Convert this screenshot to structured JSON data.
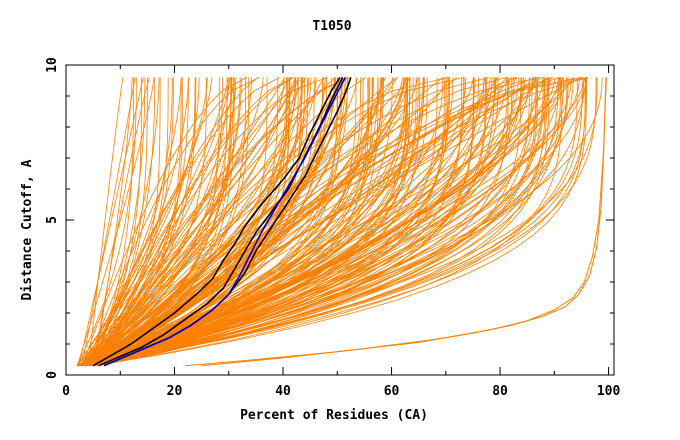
{
  "chart_data": {
    "type": "line",
    "title": "T1050",
    "xlabel": "Percent of Residues (CA)",
    "ylabel": "Distance Cutoff, A",
    "xlim": [
      0,
      101
    ],
    "ylim": [
      0,
      10
    ],
    "x_ticks": [
      0,
      20,
      40,
      60,
      80,
      100
    ],
    "x_tick_labels": [
      "0",
      "20",
      "40",
      "60",
      "80",
      "100"
    ],
    "y_ticks": [
      0,
      5,
      10
    ],
    "y_tick_labels": [
      "0",
      "5",
      "10"
    ],
    "grid": false,
    "legend": "none",
    "colors": {
      "background_models": "#ff8000",
      "highlight_black": "#000000",
      "highlight_blue": "#0000cc"
    },
    "highlighted_series": [
      {
        "color": "#000000",
        "x": [
          5,
          8,
          12,
          16,
          20,
          24,
          27,
          29,
          31,
          33,
          36,
          40,
          43,
          45,
          47,
          49,
          50.5
        ],
        "y": [
          0.3,
          0.6,
          1.0,
          1.5,
          2.0,
          2.6,
          3.1,
          3.7,
          4.2,
          4.8,
          5.5,
          6.3,
          7.0,
          7.8,
          8.5,
          9.2,
          9.6
        ]
      },
      {
        "color": "#000000",
        "x": [
          6,
          10,
          14,
          18,
          22,
          26,
          29,
          31,
          33,
          35,
          38,
          41,
          43,
          45,
          47,
          49,
          51
        ],
        "y": [
          0.3,
          0.6,
          0.9,
          1.3,
          1.8,
          2.3,
          2.8,
          3.4,
          4.0,
          4.6,
          5.3,
          6.0,
          6.7,
          7.4,
          8.1,
          8.9,
          9.6
        ]
      },
      {
        "color": "#000000",
        "x": [
          7,
          11,
          15,
          19,
          23,
          27,
          30,
          33,
          35,
          38,
          41,
          44,
          46,
          48,
          50,
          51.5,
          52.5
        ],
        "y": [
          0.3,
          0.6,
          0.9,
          1.2,
          1.6,
          2.1,
          2.6,
          3.3,
          4.0,
          4.8,
          5.6,
          6.4,
          7.1,
          7.8,
          8.5,
          9.1,
          9.6
        ]
      },
      {
        "color": "#0000cc",
        "x": [
          7,
          11,
          15,
          19,
          23,
          27,
          30,
          32,
          34,
          36,
          38,
          40,
          42,
          44,
          46,
          48,
          50,
          51.5
        ],
        "y": [
          0.3,
          0.6,
          0.9,
          1.2,
          1.6,
          2.1,
          2.6,
          3.2,
          3.9,
          4.6,
          5.2,
          5.8,
          6.4,
          7.0,
          7.7,
          8.4,
          9.1,
          9.6
        ]
      }
    ],
    "outlier_series": [
      {
        "x": [
          22,
          35,
          50,
          65,
          75,
          82,
          88,
          92,
          94.5,
          96.5,
          97.8,
          98.6,
          99.1,
          99.5
        ],
        "y": [
          0.3,
          0.5,
          0.75,
          1.05,
          1.35,
          1.6,
          1.9,
          2.2,
          2.6,
          3.2,
          4.1,
          5.4,
          7.2,
          9.6
        ]
      },
      {
        "x": [
          25,
          40,
          55,
          68,
          78,
          85,
          90,
          93.5,
          95.5,
          97,
          98.2,
          99,
          99.6
        ],
        "y": [
          0.3,
          0.55,
          0.85,
          1.15,
          1.45,
          1.75,
          2.1,
          2.5,
          3.0,
          3.8,
          5.0,
          7.0,
          9.6
        ]
      }
    ]
  }
}
